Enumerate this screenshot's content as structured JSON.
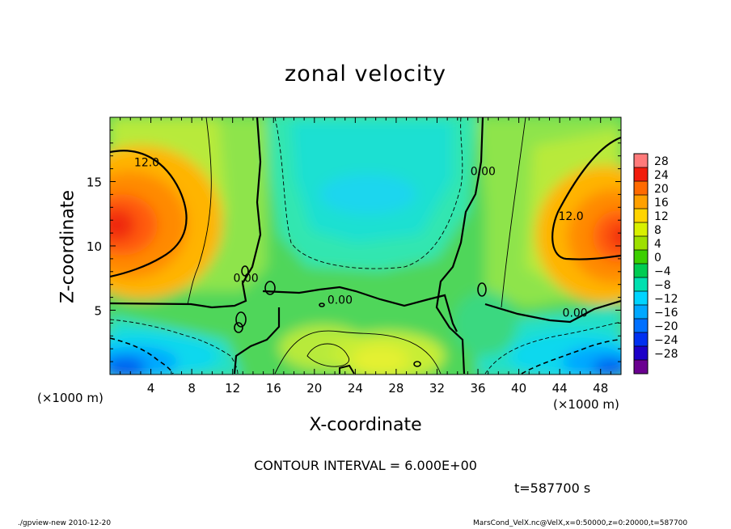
{
  "chart_data": {
    "type": "heatmap",
    "title": "zonal velocity",
    "xlabel": "X-coordinate",
    "ylabel": "Z-coordinate",
    "x_unit": "(×1000 m)",
    "x_ticks": [
      4,
      8,
      12,
      16,
      20,
      24,
      28,
      32,
      36,
      40,
      44,
      48
    ],
    "y_ticks": [
      5,
      10,
      15
    ],
    "xlim": [
      0,
      50
    ],
    "ylim": [
      0,
      20
    ],
    "colorbar_ticks": [
      28,
      24,
      20,
      16,
      12,
      8,
      4,
      0,
      -4,
      -8,
      -12,
      -16,
      -20,
      -24,
      -28
    ],
    "colorbar_colors": [
      "#ff7a7a",
      "#f21c0c",
      "#ff6a00",
      "#ffa000",
      "#ffd400",
      "#d8f000",
      "#9ee000",
      "#3ccf00",
      "#00cc52",
      "#00e0b0",
      "#00d4ff",
      "#00a8ff",
      "#0070ff",
      "#0030f0",
      "#1c00c8",
      "#6a0090"
    ],
    "contour_labels": [
      {
        "text": "12.0",
        "x": 3.6,
        "z": 16.2
      },
      {
        "text": "12.0",
        "x": 45.1,
        "z": 12.0
      },
      {
        "text": "0.00",
        "x": 36.5,
        "z": 15.5
      },
      {
        "text": "0.00",
        "x": 22.5,
        "z": 5.5
      },
      {
        "text": "0.00",
        "x": 45.5,
        "z": 4.5
      },
      {
        "text": "0.00",
        "x": 13.3,
        "z": 7.2
      }
    ],
    "contour_interval": "CONTOUR INTERVAL = 6.000E+00",
    "time": "t=587700 s"
  },
  "footer": {
    "left": "./gpview-new  2010-12-20",
    "right": "MarsCond_VelX.nc@VelX,x=0:50000,z=0:20000,t=587700"
  }
}
